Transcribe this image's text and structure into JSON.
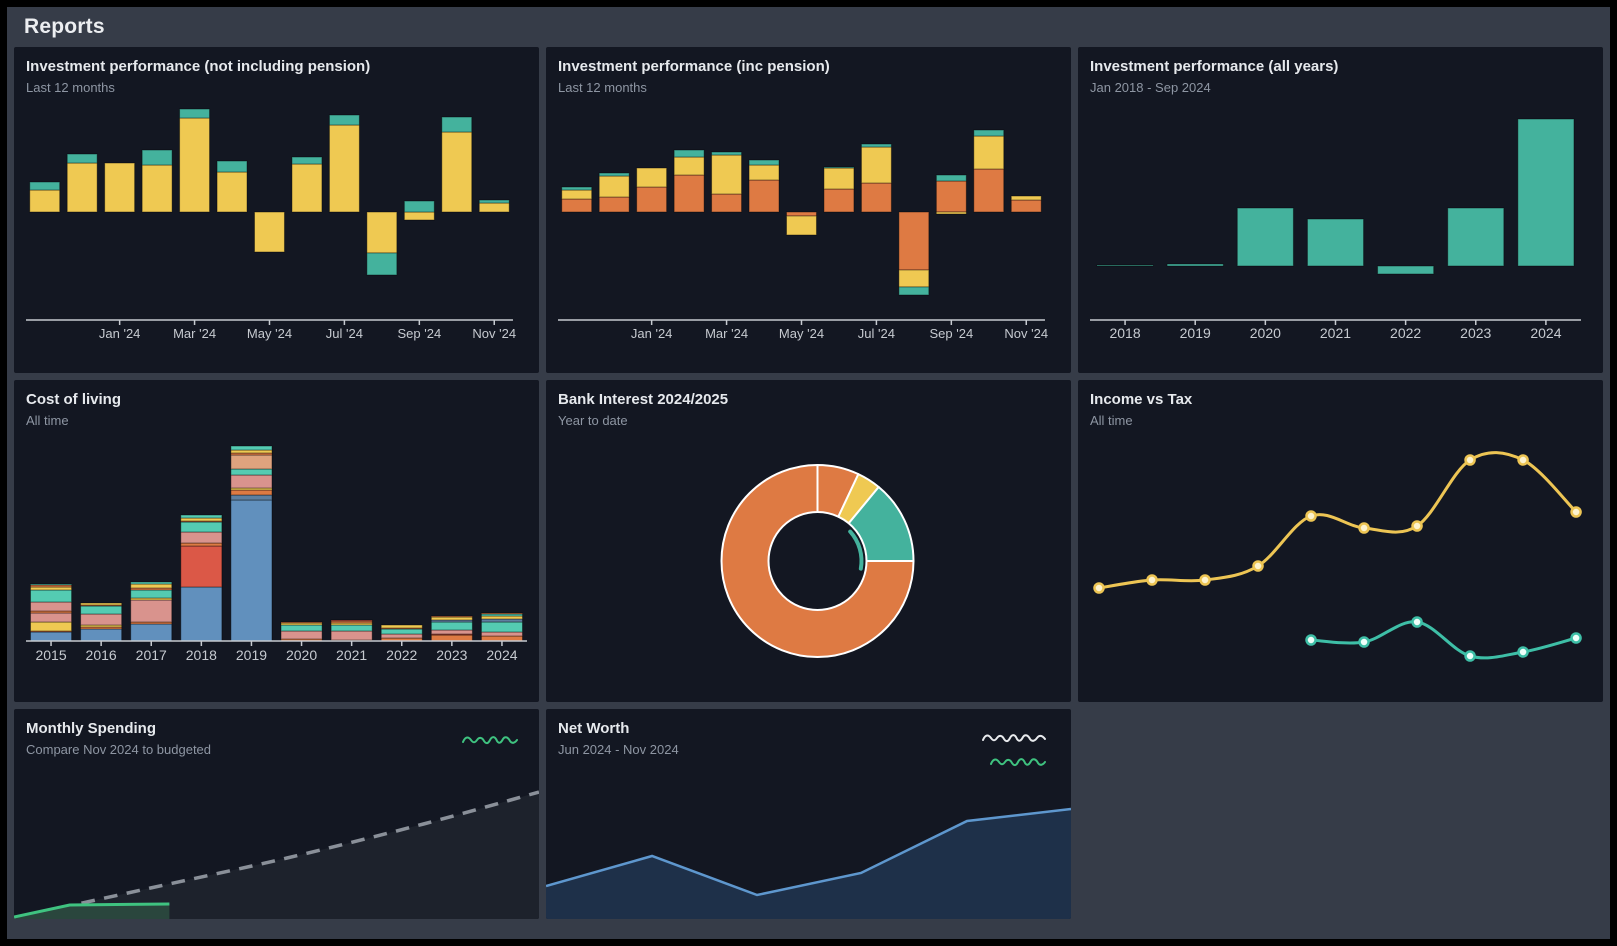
{
  "page": {
    "title": "Reports"
  },
  "colors": {
    "page_bg": "#363C48",
    "panel_bg": "#131722",
    "title_text": "#E6E9ED",
    "subtitle_text": "#8E96A3",
    "axis": "#C6CAD0",
    "yellow": "#EFC952",
    "teal": "#44B29D",
    "orange": "#DE7A43",
    "blue": "#6190BD",
    "red": "#DB5847",
    "pink": "#D9938D",
    "peach": "#DFA37E",
    "teal2": "#54CBB2",
    "slate": "#5E7FA0",
    "income_line": "#EDC554",
    "income_marker": "#FDF3CE",
    "tax_line": "#3EBFA7",
    "tax_marker": "#EFFFFA",
    "networth_line": "#5E97CE",
    "networth_fill": "#1E3049",
    "budget_line": "#8A9099",
    "budget_fill": "#1D222C",
    "spend_line": "#3FC380",
    "spend_fill": "#2A463D",
    "slice_border": "#FFFFFF",
    "sparkline_white": "#E8EAED"
  },
  "icons": {
    "monthly_spending_legend": "green-squiggle",
    "net_worth_legend_1": "white-squiggle",
    "net_worth_legend_2": "green-squiggle"
  },
  "panels": [
    {
      "title": "Investment performance (not including pension)",
      "subtitle": "Last 12 months",
      "chart_data": {
        "type": "bar",
        "stacked": true,
        "categories": [
          "Nov '23",
          "Dec '23",
          "Jan '24",
          "Feb '24",
          "Mar '24",
          "Apr '24",
          "May '24",
          "Jun '24",
          "Jul '24",
          "Aug '24",
          "Sep '24",
          "Oct '24",
          "Nov '24"
        ],
        "series": [
          {
            "name": "yellow-series",
            "color_key": "yellow",
            "values": [
              22,
              49,
              49,
              47,
              94,
              40,
              -40,
              48,
              87,
              -41,
              -8,
              80,
              9
            ]
          },
          {
            "name": "teal-series",
            "color_key": "teal",
            "values": [
              8,
              9,
              0,
              15,
              9,
              11,
              0,
              7,
              10,
              -22,
              11,
              15,
              3
            ]
          }
        ],
        "tick_indices": [
          2,
          4,
          6,
          8,
          10,
          12
        ],
        "tick_labels": [
          "Jan '24",
          "Mar '24",
          "May '24",
          "Jul '24",
          "Sep '24",
          "Nov '24"
        ]
      }
    },
    {
      "title": "Investment performance (inc pension)",
      "subtitle": "Last 12 months",
      "chart_data": {
        "type": "bar",
        "stacked": true,
        "categories": [
          "Nov '23",
          "Dec '23",
          "Jan '24",
          "Feb '24",
          "Mar '24",
          "Apr '24",
          "May '24",
          "Jun '24",
          "Jul '24",
          "Aug '24",
          "Sep '24",
          "Oct '24",
          "Nov '24"
        ],
        "series": [
          {
            "name": "orange-series",
            "color_key": "orange",
            "values": [
              13,
              15,
              25,
              37,
              18,
              32,
              -4,
              23,
              29,
              -58,
              31,
              43,
              12
            ]
          },
          {
            "name": "yellow-series",
            "color_key": "yellow",
            "values": [
              9,
              21,
              19,
              18,
              39,
              15,
              -19,
              21,
              36,
              -17,
              -2,
              33,
              4
            ]
          },
          {
            "name": "teal-series",
            "color_key": "teal",
            "values": [
              3,
              3,
              0,
              7,
              3,
              5,
              0,
              1,
              3,
              -8,
              6,
              6,
              0
            ]
          }
        ],
        "tick_indices": [
          2,
          4,
          6,
          8,
          10,
          12
        ],
        "tick_labels": [
          "Jan '24",
          "Mar '24",
          "May '24",
          "Jul '24",
          "Sep '24",
          "Nov '24"
        ]
      }
    },
    {
      "title": "Investment performance (all years)",
      "subtitle": "Jan 2018 - Sep 2024",
      "chart_data": {
        "type": "bar",
        "categories": [
          "2018",
          "2019",
          "2020",
          "2021",
          "2022",
          "2023",
          "2024"
        ],
        "series": [
          {
            "name": "teal-series",
            "color_key": "teal",
            "values": [
              1,
              2,
              58,
              47,
              -8,
              58,
              147
            ]
          }
        ]
      }
    },
    {
      "title": "Cost of living",
      "subtitle": "All time",
      "chart_data": {
        "type": "bar",
        "stacked": true,
        "categories": [
          "2015",
          "2016",
          "2017",
          "2018",
          "2019",
          "2020",
          "2021",
          "2022",
          "2023",
          "2024"
        ],
        "stacks": [
          [
            [
              "blue",
              9
            ],
            [
              "orange",
              1
            ],
            [
              "yellow",
              9
            ],
            [
              "pink",
              9
            ],
            [
              "orange",
              2
            ],
            [
              "pink",
              9
            ],
            [
              "teal2",
              12
            ],
            [
              "yellow",
              3
            ],
            [
              "orange",
              2
            ],
            [
              "teal2",
              1
            ]
          ],
          [
            [
              "blue",
              12
            ],
            [
              "orange",
              2
            ],
            [
              "yellow",
              2
            ],
            [
              "pink",
              11
            ],
            [
              "teal2",
              8
            ],
            [
              "orange",
              1
            ],
            [
              "yellow",
              2
            ]
          ],
          [
            [
              "blue",
              17
            ],
            [
              "orange",
              2
            ],
            [
              "pink",
              22
            ],
            [
              "yellow",
              2
            ],
            [
              "teal2",
              8
            ],
            [
              "orange",
              2
            ],
            [
              "yellow",
              4
            ],
            [
              "teal2",
              2
            ]
          ],
          [
            [
              "blue",
              54
            ],
            [
              "red",
              41
            ],
            [
              "orange",
              3
            ],
            [
              "pink",
              11
            ],
            [
              "teal2",
              10
            ],
            [
              "orange",
              1
            ],
            [
              "yellow",
              3
            ],
            [
              "teal2",
              3
            ]
          ],
          [
            [
              "blue",
              141
            ],
            [
              "slate",
              5
            ],
            [
              "orange",
              5
            ],
            [
              "yellow",
              2
            ],
            [
              "pink",
              13
            ],
            [
              "teal2",
              6
            ],
            [
              "peach",
              14
            ],
            [
              "orange",
              2
            ],
            [
              "yellow",
              3
            ],
            [
              "teal2",
              4
            ]
          ],
          [
            [
              "orange",
              2
            ],
            [
              "pink",
              8
            ],
            [
              "teal2",
              6
            ],
            [
              "yellow",
              2
            ],
            [
              "orange",
              1
            ]
          ],
          [
            [
              "orange",
              1
            ],
            [
              "pink",
              9
            ],
            [
              "teal2",
              6
            ],
            [
              "yellow",
              2
            ],
            [
              "orange",
              2
            ],
            [
              "red",
              1
            ]
          ],
          [
            [
              "orange",
              3
            ],
            [
              "pink",
              4
            ],
            [
              "teal2",
              5
            ],
            [
              "orange",
              1
            ],
            [
              "yellow",
              3
            ]
          ],
          [
            [
              "orange",
              6
            ],
            [
              "red",
              1
            ],
            [
              "pink",
              4
            ],
            [
              "teal2",
              8
            ],
            [
              "slate",
              2
            ],
            [
              "yellow",
              3
            ],
            [
              "orange",
              1
            ]
          ],
          [
            [
              "orange",
              5
            ],
            [
              "pink",
              4
            ],
            [
              "teal2",
              10
            ],
            [
              "slate",
              3
            ],
            [
              "yellow",
              3
            ],
            [
              "teal2",
              2
            ],
            [
              "orange",
              1
            ]
          ]
        ]
      }
    },
    {
      "title": "Bank Interest 2024/2025",
      "subtitle": "Year to date",
      "chart_data": {
        "type": "pie",
        "donut": true,
        "slices": [
          {
            "color_key": "orange",
            "pct": 7
          },
          {
            "color_key": "yellow",
            "pct": 4
          },
          {
            "color_key": "teal",
            "pct": 14
          },
          {
            "color_key": "orange",
            "pct": 75
          }
        ],
        "inner_arc": {
          "color_key": "teal",
          "from_deg": 48,
          "to_deg": 100
        }
      }
    },
    {
      "title": "Income vs Tax",
      "subtitle": "All time",
      "chart_data": {
        "type": "line",
        "lines": [
          {
            "name": "income",
            "color_key": "income_line",
            "marker_key": "income_marker",
            "values": [
              54,
              58,
              58,
              65,
              90,
              84,
              85,
              118,
              118,
              92
            ]
          },
          {
            "name": "tax",
            "color_key": "tax_line",
            "marker_key": "tax_marker",
            "values": [
              null,
              null,
              null,
              null,
              28,
              27,
              37,
              20,
              22,
              29
            ]
          }
        ]
      }
    },
    {
      "title": "Monthly Spending",
      "subtitle": "Compare Nov 2024 to budgeted",
      "chart_data": {
        "type": "area",
        "layers": [
          {
            "name": "budgeted",
            "color_key": "budget_line",
            "fill_key": "budget_fill",
            "dash": "13 9",
            "width": 3.5,
            "smooth": true,
            "points": [
              [
                0,
                1
              ],
              [
                26,
                31
              ],
              [
                52,
                61
              ],
              [
                78,
                95
              ],
              [
                100,
                127
              ]
            ]
          },
          {
            "name": "actual",
            "color_key": "spend_line",
            "fill_key": "spend_fill",
            "width": 3,
            "points": [
              [
                0,
                2
              ],
              [
                10.6,
                14
              ],
              [
                29.6,
                15
              ]
            ]
          }
        ]
      }
    },
    {
      "title": "Net Worth",
      "subtitle": "Jun 2024 - Nov 2024",
      "chart_data": {
        "type": "area",
        "categories": [
          "Jun 2024",
          "Jul 2024",
          "Aug 2024",
          "Sep 2024",
          "Oct 2024",
          "Nov 2024"
        ],
        "layers": [
          {
            "name": "net-worth",
            "color_key": "networth_line",
            "fill_key": "networth_fill",
            "width": 2.5,
            "points": [
              [
                0,
                33
              ],
              [
                20.2,
                63
              ],
              [
                40.2,
                24
              ],
              [
                60,
                46
              ],
              [
                80.2,
                98
              ],
              [
                100,
                110
              ]
            ]
          }
        ]
      }
    }
  ]
}
